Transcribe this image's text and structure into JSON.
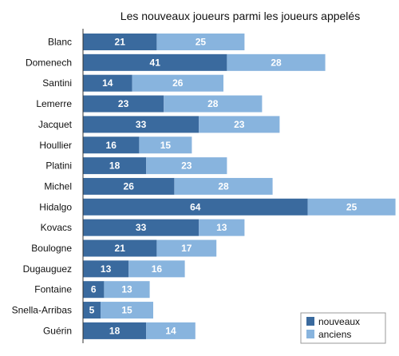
{
  "chart_data": {
    "type": "bar",
    "orientation": "horizontal",
    "stacked": true,
    "title": "Les nouveaux joueurs parmi les joueurs appelés",
    "categories": [
      "Blanc",
      "Domenech",
      "Santini",
      "Lemerre",
      "Jacquet",
      "Houllier",
      "Platini",
      "Michel",
      "Hidalgo",
      "Kovacs",
      "Boulogne",
      "Dugauguez",
      "Fontaine",
      "Snella-Arribas",
      "Guérin"
    ],
    "series": [
      {
        "name": "nouveaux",
        "color": "#3a6a9e",
        "values": [
          21,
          41,
          14,
          23,
          33,
          16,
          18,
          26,
          64,
          33,
          21,
          13,
          6,
          5,
          18
        ]
      },
      {
        "name": "anciens",
        "color": "#88b4de",
        "values": [
          25,
          28,
          26,
          28,
          23,
          15,
          23,
          28,
          25,
          13,
          17,
          16,
          13,
          15,
          14
        ]
      }
    ],
    "data_labels": true,
    "legend_position": "bottom-right",
    "grid": false,
    "xlim": [
      0,
      89
    ]
  }
}
